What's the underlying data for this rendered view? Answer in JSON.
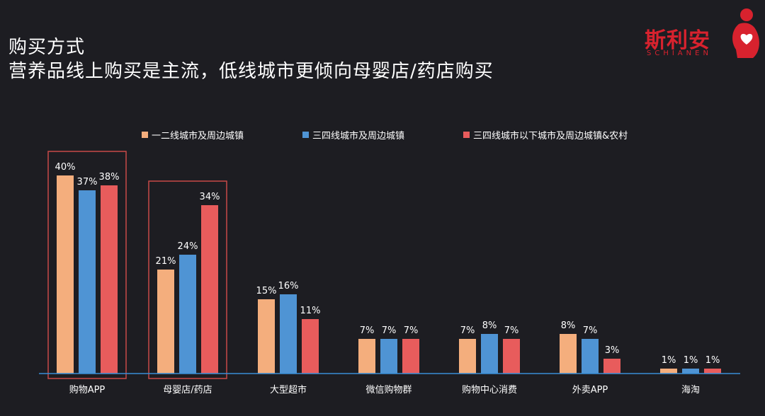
{
  "header": {
    "title_line1": "购买方式",
    "title_line2": "营养品线上购买是主流，低线城市更倾向母婴店/药店购买"
  },
  "logo": {
    "text": "斯利安",
    "sub": "SCHIANEN",
    "icon": "pregnant-mother-heart-icon",
    "color": "#d8222e"
  },
  "colors": {
    "background": "#1d1d22",
    "highlight_box": "#c84a48",
    "axis": "#3a8fd6"
  },
  "chart_data": {
    "type": "bar",
    "categories": [
      "购物APP",
      "母婴店/药店",
      "大型超市",
      "微信购物群",
      "购物中心消费",
      "外卖APP",
      "海淘"
    ],
    "series": [
      {
        "name": "一二线城市及周边城镇",
        "color": "#f4ae7d",
        "values": [
          40,
          21,
          15,
          7,
          7,
          8,
          1
        ],
        "labels": [
          "40%",
          "21%",
          "15%",
          "7%",
          "7%",
          "8%",
          "1%"
        ]
      },
      {
        "name": "三四线城市及周边城镇",
        "color": "#4f94d4",
        "values": [
          37,
          24,
          16,
          7,
          8,
          7,
          1
        ],
        "labels": [
          "37%",
          "24%",
          "16%",
          "7%",
          "8%",
          "7%",
          "1%"
        ]
      },
      {
        "name": "三四线城市以下城市及周边城镇&农村",
        "color": "#e85c5c",
        "values": [
          38,
          34,
          11,
          7,
          7,
          3,
          1
        ],
        "labels": [
          "38%",
          "34%",
          "11%",
          "7%",
          "7%",
          "3%",
          "1%"
        ]
      }
    ],
    "ylim": [
      0,
      40
    ],
    "grid": false,
    "legend": "top",
    "highlighted_categories": [
      "购物APP",
      "母婴店/药店"
    ]
  }
}
